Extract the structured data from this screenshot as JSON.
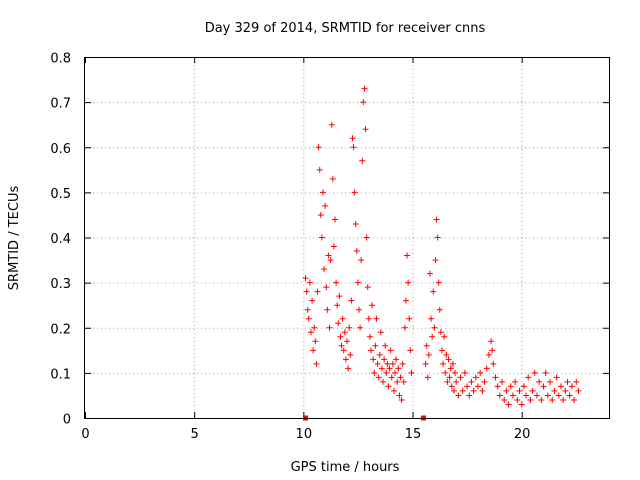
{
  "chart_data": {
    "type": "scatter",
    "title": "Day 329 of 2014, SRMTID for receiver cnns",
    "xlabel": "GPS time / hours",
    "ylabel": "SRMTID / TECUs",
    "xlim": [
      0,
      24
    ],
    "ylim": [
      0,
      0.8
    ],
    "xticks": [
      "0",
      "5",
      "10",
      "15",
      "20"
    ],
    "xtick_values": [
      0,
      5,
      10,
      15,
      20
    ],
    "yticks": [
      "0",
      "0.1",
      "0.2",
      "0.3",
      "0.4",
      "0.5",
      "0.6",
      "0.7",
      "0.8"
    ],
    "ytick_values": [
      0,
      0.1,
      0.2,
      0.3,
      0.4,
      0.5,
      0.6,
      0.7,
      0.8
    ],
    "grid": true,
    "marker": "+",
    "color": "#ff0000",
    "gap_markers_x": [
      10.1,
      15.5
    ],
    "series": [
      {
        "name": "cnns",
        "points": [
          [
            10.1,
            0.31
          ],
          [
            10.15,
            0.28
          ],
          [
            10.2,
            0.24
          ],
          [
            10.25,
            0.22
          ],
          [
            10.3,
            0.3
          ],
          [
            10.35,
            0.19
          ],
          [
            10.4,
            0.26
          ],
          [
            10.45,
            0.15
          ],
          [
            10.5,
            0.2
          ],
          [
            10.55,
            0.17
          ],
          [
            10.6,
            0.12
          ],
          [
            10.65,
            0.28
          ],
          [
            10.7,
            0.6
          ],
          [
            10.75,
            0.55
          ],
          [
            10.8,
            0.45
          ],
          [
            10.85,
            0.4
          ],
          [
            10.9,
            0.5
          ],
          [
            10.95,
            0.33
          ],
          [
            11.0,
            0.47
          ],
          [
            11.05,
            0.29
          ],
          [
            11.1,
            0.24
          ],
          [
            11.15,
            0.36
          ],
          [
            11.2,
            0.2
          ],
          [
            11.25,
            0.35
          ],
          [
            11.3,
            0.65
          ],
          [
            11.35,
            0.53
          ],
          [
            11.4,
            0.38
          ],
          [
            11.45,
            0.44
          ],
          [
            11.5,
            0.3
          ],
          [
            11.55,
            0.25
          ],
          [
            11.6,
            0.21
          ],
          [
            11.65,
            0.27
          ],
          [
            11.7,
            0.18
          ],
          [
            11.75,
            0.16
          ],
          [
            11.8,
            0.22
          ],
          [
            11.85,
            0.15
          ],
          [
            11.9,
            0.19
          ],
          [
            11.95,
            0.13
          ],
          [
            12.0,
            0.17
          ],
          [
            12.05,
            0.11
          ],
          [
            12.1,
            0.2
          ],
          [
            12.15,
            0.14
          ],
          [
            12.2,
            0.26
          ],
          [
            12.25,
            0.62
          ],
          [
            12.3,
            0.6
          ],
          [
            12.35,
            0.5
          ],
          [
            12.4,
            0.43
          ],
          [
            12.45,
            0.37
          ],
          [
            12.5,
            0.3
          ],
          [
            12.55,
            0.24
          ],
          [
            12.6,
            0.2
          ],
          [
            12.65,
            0.35
          ],
          [
            12.7,
            0.57
          ],
          [
            12.75,
            0.7
          ],
          [
            12.8,
            0.73
          ],
          [
            12.85,
            0.64
          ],
          [
            12.9,
            0.4
          ],
          [
            12.95,
            0.29
          ],
          [
            13.0,
            0.22
          ],
          [
            13.05,
            0.18
          ],
          [
            13.1,
            0.15
          ],
          [
            13.15,
            0.25
          ],
          [
            13.2,
            0.13
          ],
          [
            13.25,
            0.1
          ],
          [
            13.3,
            0.16
          ],
          [
            13.35,
            0.22
          ],
          [
            13.4,
            0.12
          ],
          [
            13.45,
            0.09
          ],
          [
            13.5,
            0.14
          ],
          [
            13.55,
            0.19
          ],
          [
            13.6,
            0.11
          ],
          [
            13.65,
            0.08
          ],
          [
            13.7,
            0.13
          ],
          [
            13.75,
            0.16
          ],
          [
            13.8,
            0.1
          ],
          [
            13.85,
            0.12
          ],
          [
            13.9,
            0.07
          ],
          [
            13.95,
            0.11
          ],
          [
            14.0,
            0.15
          ],
          [
            14.05,
            0.09
          ],
          [
            14.1,
            0.12
          ],
          [
            14.15,
            0.06
          ],
          [
            14.2,
            0.1
          ],
          [
            14.25,
            0.13
          ],
          [
            14.3,
            0.08
          ],
          [
            14.35,
            0.11
          ],
          [
            14.4,
            0.05
          ],
          [
            14.45,
            0.09
          ],
          [
            14.5,
            0.04
          ],
          [
            14.55,
            0.12
          ],
          [
            14.6,
            0.08
          ],
          [
            14.65,
            0.2
          ],
          [
            14.7,
            0.26
          ],
          [
            14.75,
            0.36
          ],
          [
            14.8,
            0.3
          ],
          [
            14.85,
            0.22
          ],
          [
            14.9,
            0.15
          ],
          [
            14.95,
            0.1
          ],
          [
            15.6,
            0.12
          ],
          [
            15.65,
            0.16
          ],
          [
            15.7,
            0.09
          ],
          [
            15.75,
            0.14
          ],
          [
            15.8,
            0.32
          ],
          [
            15.85,
            0.22
          ],
          [
            15.9,
            0.18
          ],
          [
            15.95,
            0.28
          ],
          [
            16.0,
            0.2
          ],
          [
            16.05,
            0.35
          ],
          [
            16.1,
            0.44
          ],
          [
            16.15,
            0.4
          ],
          [
            16.2,
            0.3
          ],
          [
            16.25,
            0.24
          ],
          [
            16.3,
            0.19
          ],
          [
            16.35,
            0.15
          ],
          [
            16.4,
            0.12
          ],
          [
            16.45,
            0.18
          ],
          [
            16.5,
            0.1
          ],
          [
            16.55,
            0.14
          ],
          [
            16.6,
            0.08
          ],
          [
            16.65,
            0.13
          ],
          [
            16.7,
            0.09
          ],
          [
            16.75,
            0.11
          ],
          [
            16.8,
            0.07
          ],
          [
            16.85,
            0.12
          ],
          [
            16.9,
            0.06
          ],
          [
            16.95,
            0.1
          ],
          [
            17.0,
            0.08
          ],
          [
            17.1,
            0.05
          ],
          [
            17.2,
            0.09
          ],
          [
            17.3,
            0.06
          ],
          [
            17.4,
            0.1
          ],
          [
            17.5,
            0.07
          ],
          [
            17.6,
            0.05
          ],
          [
            17.7,
            0.08
          ],
          [
            17.8,
            0.06
          ],
          [
            17.9,
            0.09
          ],
          [
            18.0,
            0.07
          ],
          [
            18.1,
            0.1
          ],
          [
            18.2,
            0.06
          ],
          [
            18.3,
            0.08
          ],
          [
            18.4,
            0.11
          ],
          [
            18.5,
            0.14
          ],
          [
            18.6,
            0.17
          ],
          [
            18.65,
            0.15
          ],
          [
            18.7,
            0.12
          ],
          [
            18.8,
            0.09
          ],
          [
            18.9,
            0.07
          ],
          [
            19.0,
            0.05
          ],
          [
            19.1,
            0.08
          ],
          [
            19.2,
            0.04
          ],
          [
            19.3,
            0.06
          ],
          [
            19.4,
            0.03
          ],
          [
            19.5,
            0.07
          ],
          [
            19.6,
            0.05
          ],
          [
            19.7,
            0.08
          ],
          [
            19.8,
            0.04
          ],
          [
            19.9,
            0.06
          ],
          [
            20.0,
            0.03
          ],
          [
            20.1,
            0.07
          ],
          [
            20.2,
            0.05
          ],
          [
            20.3,
            0.09
          ],
          [
            20.4,
            0.04
          ],
          [
            20.5,
            0.06
          ],
          [
            20.6,
            0.1
          ],
          [
            20.7,
            0.05
          ],
          [
            20.8,
            0.08
          ],
          [
            20.9,
            0.04
          ],
          [
            21.0,
            0.07
          ],
          [
            21.1,
            0.1
          ],
          [
            21.2,
            0.05
          ],
          [
            21.3,
            0.08
          ],
          [
            21.4,
            0.04
          ],
          [
            21.5,
            0.06
          ],
          [
            21.6,
            0.09
          ],
          [
            21.7,
            0.05
          ],
          [
            21.8,
            0.07
          ],
          [
            21.9,
            0.04
          ],
          [
            22.0,
            0.06
          ],
          [
            22.1,
            0.08
          ],
          [
            22.2,
            0.05
          ],
          [
            22.3,
            0.07
          ],
          [
            22.4,
            0.04
          ],
          [
            22.5,
            0.08
          ],
          [
            22.6,
            0.06
          ]
        ]
      }
    ]
  }
}
